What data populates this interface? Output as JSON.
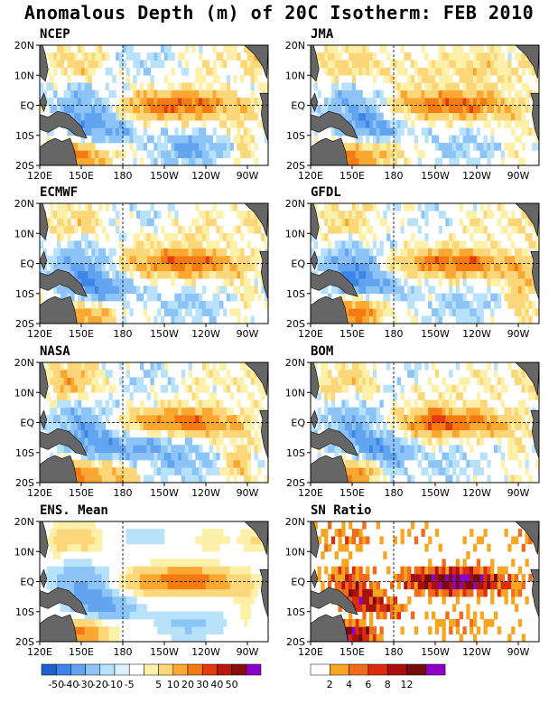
{
  "title": "Anomalous Depth (m) of 20C Isotherm: FEB 2010",
  "colors": {
    "anomaly_scale": {
      "neg": [
        "#1f5fd0",
        "#3d86e8",
        "#62a4f0",
        "#8cc4f7",
        "#b8e2fb",
        "#ddf3fc"
      ],
      "pos": [
        "#fdf0a8",
        "#fcd77a",
        "#faa832",
        "#f47a13",
        "#e23b0e",
        "#b8190a",
        "#8a0d0d",
        "#8e00c8"
      ]
    },
    "sn_scale": [
      "#ffffff",
      "#f5a623",
      "#f26a1b",
      "#db2d0d",
      "#a8110e",
      "#760b10",
      "#8e00c8"
    ],
    "land": "#666666",
    "land_edge": "#000000"
  },
  "chart_data": [
    {
      "type": "heatmap",
      "title": "NCEP",
      "x_ticks": [
        "120E",
        "150E",
        "180",
        "150W",
        "120W",
        "90W"
      ],
      "y_ticks": [
        "20N",
        "10N",
        "EQ",
        "10S",
        "20S"
      ]
    },
    {
      "type": "heatmap",
      "title": "JMA",
      "x_ticks": [
        "120E",
        "150E",
        "180",
        "150W",
        "120W",
        "90W"
      ],
      "y_ticks": [
        "20N",
        "10N",
        "EQ",
        "10S",
        "20S"
      ]
    },
    {
      "type": "heatmap",
      "title": "ECMWF",
      "x_ticks": [
        "120E",
        "150E",
        "180",
        "150W",
        "120W",
        "90W"
      ],
      "y_ticks": [
        "20N",
        "10N",
        "EQ",
        "10S",
        "20S"
      ]
    },
    {
      "type": "heatmap",
      "title": "GFDL",
      "x_ticks": [
        "120E",
        "150E",
        "180",
        "150W",
        "120W",
        "90W"
      ],
      "y_ticks": [
        "20N",
        "10N",
        "EQ",
        "10S",
        "20S"
      ]
    },
    {
      "type": "heatmap",
      "title": "NASA",
      "x_ticks": [
        "120E",
        "150E",
        "180",
        "150W",
        "120W",
        "90W"
      ],
      "y_ticks": [
        "20N",
        "10N",
        "EQ",
        "10S",
        "20S"
      ]
    },
    {
      "type": "heatmap",
      "title": "BOM",
      "x_ticks": [
        "120E",
        "150E",
        "180",
        "150W",
        "120W",
        "90W"
      ],
      "y_ticks": [
        "20N",
        "10N",
        "EQ",
        "10S",
        "20S"
      ]
    },
    {
      "type": "heatmap",
      "title": "ENS. Mean",
      "x_ticks": [
        "120E",
        "150E",
        "180",
        "150W",
        "120W",
        "90W"
      ],
      "y_ticks": [
        "20N",
        "10N",
        "EQ",
        "10S",
        "20S"
      ]
    },
    {
      "type": "heatmap",
      "title": "SN Ratio",
      "x_ticks": [
        "120E",
        "150E",
        "180",
        "150W",
        "120W",
        "90W"
      ],
      "y_ticks": [
        "20N",
        "10N",
        "EQ",
        "10S",
        "20S"
      ]
    }
  ],
  "legend_anomaly": {
    "labels": [
      "-50",
      "-40",
      "-30",
      "-20",
      "-10",
      "-5",
      "5",
      "10",
      "20",
      "30",
      "40",
      "50"
    ]
  },
  "legend_sn": {
    "labels": [
      "2",
      "4",
      "6",
      "8",
      "12"
    ]
  }
}
